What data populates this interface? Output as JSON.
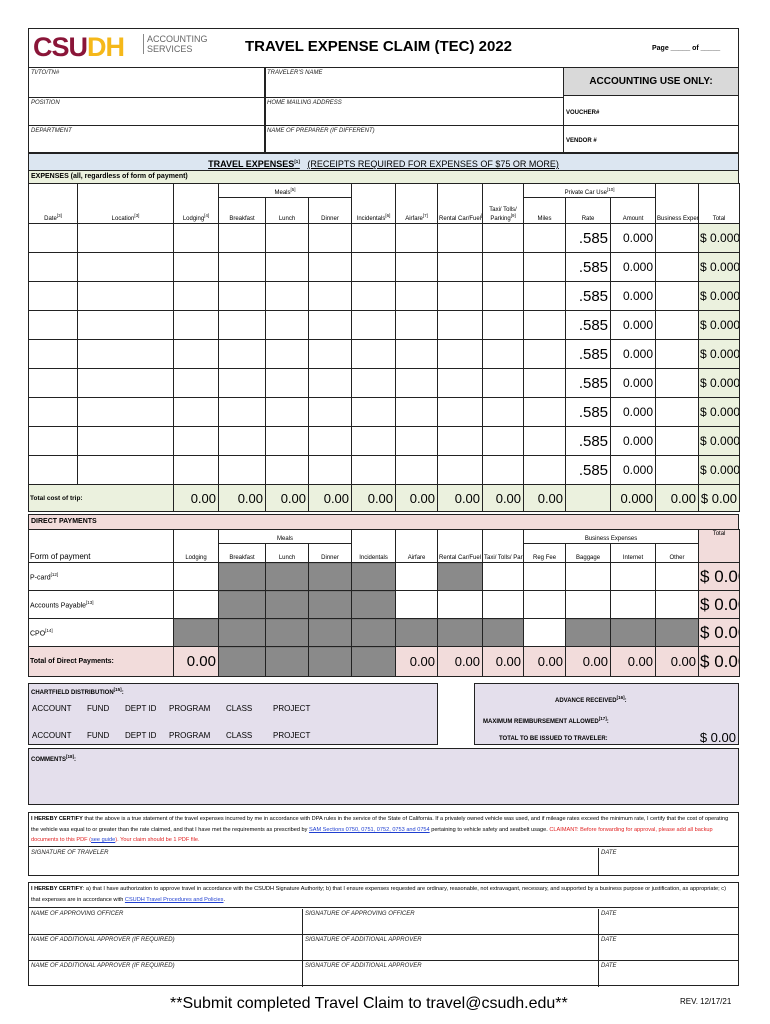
{
  "header": {
    "logo_main": "CSUDH",
    "logo_sub1": "ACCOUNTING",
    "logo_sub2": "SERVICES",
    "title": "TRAVEL EXPENSE CLAIM (TEC) 2022",
    "page_label": "Page _____ of _____",
    "colors": {
      "logo_maroon": "#8a1538",
      "logo_gold": "#f5b81a"
    }
  },
  "fields": {
    "ti": "TI/TO/TN#",
    "traveler": "TRAVELER'S NAME",
    "position": "POSITION",
    "address": "HOME MAILING ADDRESS",
    "department": "DEPARTMENT",
    "preparer": "NAME OF PREPARER (IF DIFFERENT)"
  },
  "accounting": {
    "title": "ACCOUNTING USE ONLY:",
    "voucher": "VOUCHER#",
    "vendor": "VENDOR #"
  },
  "travel": {
    "title": "TRAVEL EXPENSES",
    "note": "[1]",
    "receipts": "(RECEIPTS REQUIRED FOR EXPENSES OF $75 OR MORE)",
    "subtitle": "EXPENSES (all, regardless of form of payment)"
  },
  "expense_headers": {
    "meals": "Meals",
    "meals_note": "[5]",
    "private": "Private Car Use",
    "private_note": "[10]",
    "taxi": "Taxi/ Tolls/",
    "taxi_b": "Parking",
    "taxi_note": "[9]",
    "cols": [
      {
        "l": "Date",
        "n": "[3]"
      },
      {
        "l": "Location",
        "n": "[3]"
      },
      {
        "l": "Lodging",
        "n": "[4]"
      },
      {
        "l": "Breakfast",
        "n": ""
      },
      {
        "l": "Lunch",
        "n": ""
      },
      {
        "l": "Dinner",
        "n": ""
      },
      {
        "l": "Incidentals",
        "n": "[6]"
      },
      {
        "l": "Airfare",
        "n": "[7]"
      },
      {
        "l": "Rental Car/Fuel",
        "n": "[8]"
      },
      {
        "l": "",
        "n": ""
      },
      {
        "l": "Miles",
        "n": ""
      },
      {
        "l": "Rate",
        "n": ""
      },
      {
        "l": "Amount",
        "n": ""
      },
      {
        "l": "Business Expenses",
        "n": "[11]"
      },
      {
        "l": "Total",
        "n": ""
      }
    ]
  },
  "expense_rows": [
    {
      "rate": ".585",
      "amount": "0.000",
      "total": "$ 0.000"
    },
    {
      "rate": ".585",
      "amount": "0.000",
      "total": "$ 0.000"
    },
    {
      "rate": ".585",
      "amount": "0.000",
      "total": "$ 0.000"
    },
    {
      "rate": ".585",
      "amount": "0.000",
      "total": "$ 0.000"
    },
    {
      "rate": ".585",
      "amount": "0.000",
      "total": "$ 0.000"
    },
    {
      "rate": ".585",
      "amount": "0.000",
      "total": "$ 0.000"
    },
    {
      "rate": ".585",
      "amount": "0.000",
      "total": "$ 0.000"
    },
    {
      "rate": ".585",
      "amount": "0.000",
      "total": "$ 0.000"
    },
    {
      "rate": ".585",
      "amount": "0.000",
      "total": "$ 0.000"
    }
  ],
  "expense_total": {
    "label": "Total cost of trip:",
    "values": [
      "0.00",
      "0.00",
      "0.00",
      "0.00",
      "0.00",
      "0.00",
      "0.00",
      "0.00",
      "0.00",
      "",
      "0.000",
      "0.00",
      "$ 0.00"
    ]
  },
  "direct": {
    "title": "DIRECT PAYMENTS",
    "form_label": "Form of payment",
    "meals": "Meals",
    "business": "Business Expenses",
    "total": "Total",
    "cols": [
      "Lodging",
      "Breakfast",
      "Lunch",
      "Dinner",
      "Incidentals",
      "Airfare",
      "Rental Car/Fuel",
      "Taxi/ Tolls/ Parking",
      "Reg Fee",
      "Baggage",
      "Internet",
      "Other"
    ],
    "rows": [
      {
        "label": "P-card",
        "note": "[12]",
        "hatched": [
          1,
          2,
          3,
          4,
          6
        ],
        "total": "$ 0.00"
      },
      {
        "label": "Accounts Payable",
        "note": "[13]",
        "hatched": [
          1,
          2,
          3,
          4
        ],
        "total": "$ 0.00"
      },
      {
        "label": "CPO",
        "note": "[14]",
        "hatched": [
          0,
          1,
          2,
          3,
          4,
          5,
          6,
          7,
          9,
          10,
          11
        ],
        "total": "$ 0.00"
      }
    ],
    "total_label": "Total of Direct Payments:",
    "total_values": [
      "0.00",
      "",
      "",
      "",
      "",
      "0.00",
      "0.00",
      "0.00",
      "0.00",
      "0.00",
      "0.00",
      "0.00"
    ],
    "total_hatched": [
      1,
      2,
      3,
      4
    ],
    "grand_total": "$ 0.00"
  },
  "chartfield": {
    "title": "CHARTFIELD DISTRIBUTION",
    "note": "[15]",
    "cols": [
      "ACCOUNT",
      "FUND",
      "DEPT ID",
      "PROGRAM",
      "CLASS",
      "PROJECT"
    ]
  },
  "advance": {
    "advance": "ADVANCE RECEIVED",
    "advance_note": "[16]",
    "max": "MAXIMUM REIMBURSEMENT ALLOWED",
    "max_note": "[17]",
    "total": "TOTAL TO BE ISSUED TO TRAVELER:",
    "total_value": "$ 0.00"
  },
  "comments": {
    "label": "COMMENTS",
    "note": "[18]"
  },
  "certify1": {
    "bold": "I HEREBY CERTIFY",
    "text": " that the above is a true statement of the travel expenses incurred by me in accordance with DPA rules in the service of the State of California. If a privately owned vehicle was used, and if mileage rates exceed the minimum rate, I certify that the cost of operating the vehicle was equal to or greater than the rate claimed, and that I have met the requirements as prescribed by ",
    "link": "SAM Sections 0750, 0751, 0752, 0753 and 0754",
    "text2": " pertaining to vehicle safety and seatbelt usage. ",
    "red": "CLAIMANT: Before forwarding for approval, please add all backup documents to this PDF (",
    "guide": "see guide",
    "red2": "). Your claim should be 1 PDF file.",
    "sig": "SIGNATURE OF TRAVELER",
    "date": "DATE"
  },
  "certify2": {
    "bold": "I HEREBY CERTIFY",
    "text": ": a) that I have authorization to approve travel in accordance with the CSUDH Signature Authority; b) that I ensure expenses requested are ordinary, reasonable, not extravagant, necessary, and supported by a business purpose or justification, as appropriate; c) that expenses are in accordance with ",
    "link": "CSUDH Travel Procedures and Policies",
    "end": ".",
    "rows": [
      {
        "name": "NAME OF APPROVING OFFICER",
        "sig": "SIGNATURE OF APPROVING OFFICER",
        "date": "DATE"
      },
      {
        "name": "NAME OF ADDITIONAL APPROVER (IF REQUIRED)",
        "sig": "SIGNATURE OF ADDITIONAL APPROVER",
        "date": "DATE"
      },
      {
        "name": "NAME OF ADDITIONAL APPROVER (IF REQUIRED)",
        "sig": "SIGNATURE OF ADDITIONAL APPROVER",
        "date": "DATE"
      }
    ]
  },
  "footer": {
    "submit": "**Submit completed Travel Claim to travel@csudh.edu**",
    "rev": "REV. 12/17/21"
  }
}
